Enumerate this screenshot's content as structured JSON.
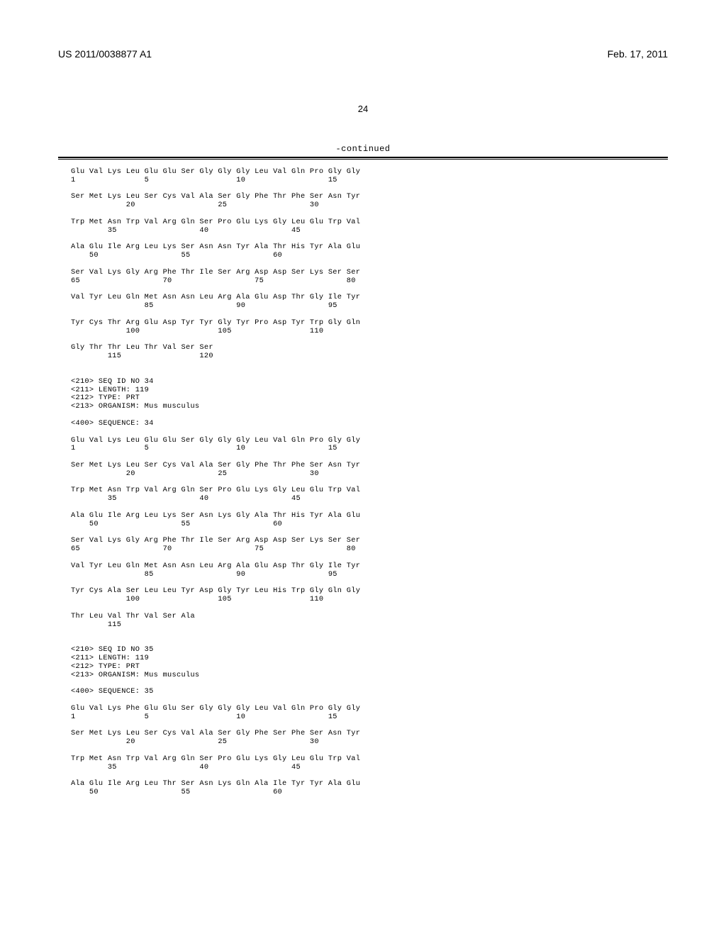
{
  "header": {
    "left": "US 2011/0038877 A1",
    "right": "Feb. 17, 2011",
    "page_number": "24"
  },
  "continued_label": "-continued",
  "sequence_text": "Glu Val Lys Leu Glu Glu Ser Gly Gly Gly Leu Val Gln Pro Gly Gly\n1               5                   10                  15\n\nSer Met Lys Leu Ser Cys Val Ala Ser Gly Phe Thr Phe Ser Asn Tyr\n            20                  25                  30\n\nTrp Met Asn Trp Val Arg Gln Ser Pro Glu Lys Gly Leu Glu Trp Val\n        35                  40                  45\n\nAla Glu Ile Arg Leu Lys Ser Asn Asn Tyr Ala Thr His Tyr Ala Glu\n    50                  55                  60\n\nSer Val Lys Gly Arg Phe Thr Ile Ser Arg Asp Asp Ser Lys Ser Ser\n65                  70                  75                  80\n\nVal Tyr Leu Gln Met Asn Asn Leu Arg Ala Glu Asp Thr Gly Ile Tyr\n                85                  90                  95\n\nTyr Cys Thr Arg Glu Asp Tyr Tyr Gly Tyr Pro Asp Tyr Trp Gly Gln\n            100                 105                 110\n\nGly Thr Thr Leu Thr Val Ser Ser\n        115                 120\n\n\n<210> SEQ ID NO 34\n<211> LENGTH: 119\n<212> TYPE: PRT\n<213> ORGANISM: Mus musculus\n\n<400> SEQUENCE: 34\n\nGlu Val Lys Leu Glu Glu Ser Gly Gly Gly Leu Val Gln Pro Gly Gly\n1               5                   10                  15\n\nSer Met Lys Leu Ser Cys Val Ala Ser Gly Phe Thr Phe Ser Asn Tyr\n            20                  25                  30\n\nTrp Met Asn Trp Val Arg Gln Ser Pro Glu Lys Gly Leu Glu Trp Val\n        35                  40                  45\n\nAla Glu Ile Arg Leu Lys Ser Asn Lys Gly Ala Thr His Tyr Ala Glu\n    50                  55                  60\n\nSer Val Lys Gly Arg Phe Thr Ile Ser Arg Asp Asp Ser Lys Ser Ser\n65                  70                  75                  80\n\nVal Tyr Leu Gln Met Asn Asn Leu Arg Ala Glu Asp Thr Gly Ile Tyr\n                85                  90                  95\n\nTyr Cys Ala Ser Leu Leu Tyr Asp Gly Tyr Leu His Trp Gly Gln Gly\n            100                 105                 110\n\nThr Leu Val Thr Val Ser Ala\n        115\n\n\n<210> SEQ ID NO 35\n<211> LENGTH: 119\n<212> TYPE: PRT\n<213> ORGANISM: Mus musculus\n\n<400> SEQUENCE: 35\n\nGlu Val Lys Phe Glu Glu Ser Gly Gly Gly Leu Val Gln Pro Gly Gly\n1               5                   10                  15\n\nSer Met Lys Leu Ser Cys Val Ala Ser Gly Phe Ser Phe Ser Asn Tyr\n            20                  25                  30\n\nTrp Met Asn Trp Val Arg Gln Ser Pro Glu Lys Gly Leu Glu Trp Val\n        35                  40                  45\n\nAla Glu Ile Arg Leu Thr Ser Asn Lys Gln Ala Ile Tyr Tyr Ala Glu\n    50                  55                  60"
}
